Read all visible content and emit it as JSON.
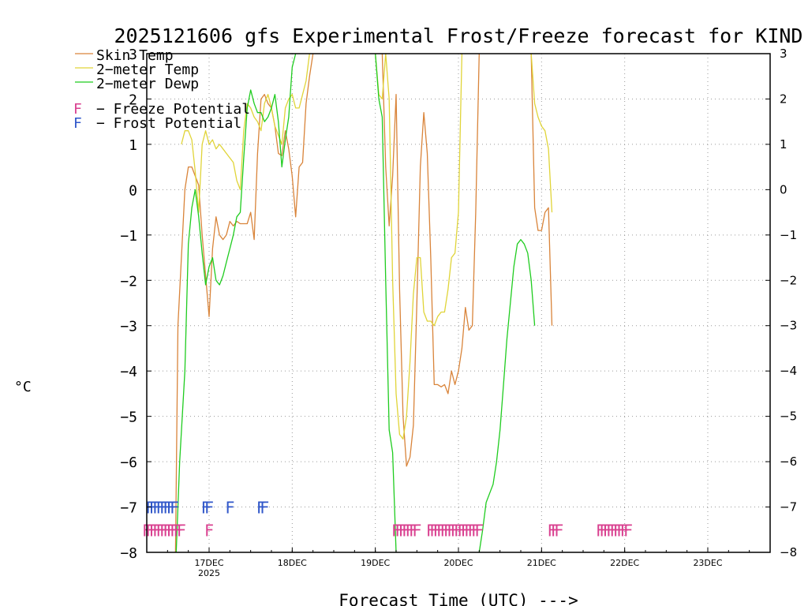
{
  "chart_data": {
    "type": "line",
    "title": "2025121606 gfs Experimental Frost/Freeze forecast for KIND",
    "ylabel": "°C",
    "xlabel": "Forecast Time (UTC) --->",
    "ylim": [
      -8,
      3
    ],
    "xlim_hours": [
      0,
      180
    ],
    "yticks": [
      -8,
      -7,
      -6,
      -5,
      -4,
      -3,
      -2,
      -1,
      0,
      1,
      2,
      3
    ],
    "ytick_labels": [
      "−8",
      "−7",
      "−6",
      "−5",
      "−4",
      "−3",
      "−2",
      "−1",
      "0",
      "1",
      "2",
      "3"
    ],
    "xticks": [
      {
        "hour": 18,
        "label": "17DEC",
        "sublabel": "2025"
      },
      {
        "hour": 42,
        "label": "18DEC",
        "sublabel": ""
      },
      {
        "hour": 66,
        "label": "19DEC",
        "sublabel": ""
      },
      {
        "hour": 90,
        "label": "20DEC",
        "sublabel": ""
      },
      {
        "hour": 114,
        "label": "21DEC",
        "sublabel": ""
      },
      {
        "hour": 138,
        "label": "22DEC",
        "sublabel": ""
      },
      {
        "hour": 162,
        "label": "23DEC",
        "sublabel": ""
      }
    ],
    "grid": true,
    "legend_position": "top-left",
    "series": [
      {
        "name": "Skin Temp",
        "color": "#d9843a",
        "points": [
          [
            8.3,
            -8
          ],
          [
            9,
            -3
          ],
          [
            11,
            0
          ],
          [
            12,
            0.5
          ],
          [
            13,
            0.5
          ],
          [
            15,
            0.1
          ],
          [
            16,
            -1
          ],
          [
            18,
            -2.8
          ],
          [
            19,
            -1.3
          ],
          [
            20,
            -0.6
          ],
          [
            21,
            -1
          ],
          [
            22,
            -1.1
          ],
          [
            23,
            -1.0
          ],
          [
            24,
            -0.7
          ],
          [
            25,
            -0.8
          ],
          [
            26,
            -0.7
          ],
          [
            27,
            -0.75
          ],
          [
            29,
            -0.75
          ],
          [
            30,
            -0.5
          ],
          [
            31,
            -1.1
          ],
          [
            32,
            0.8
          ],
          [
            33,
            2.0
          ],
          [
            34,
            2.1
          ],
          [
            35,
            1.9
          ],
          [
            36,
            1.8
          ],
          [
            37,
            1.4
          ],
          [
            38,
            0.8
          ],
          [
            39,
            0.75
          ],
          [
            40,
            1.3
          ],
          [
            41,
            0.9
          ],
          [
            42,
            0.3
          ],
          [
            43,
            -0.6
          ],
          [
            44,
            0.5
          ],
          [
            45,
            0.6
          ],
          [
            46,
            1.9
          ],
          [
            47,
            2.5
          ],
          [
            48,
            3
          ]
        ],
        "points2": [
          [
            68,
            3
          ],
          [
            69,
            0.5
          ],
          [
            70,
            -0.8
          ],
          [
            71,
            0.3
          ],
          [
            72,
            2.1
          ],
          [
            73,
            -2.2
          ],
          [
            74,
            -5.0
          ],
          [
            75,
            -6.1
          ],
          [
            76,
            -5.9
          ],
          [
            77,
            -5.2
          ],
          [
            78,
            -2.5
          ],
          [
            79,
            0.5
          ],
          [
            80,
            1.7
          ],
          [
            81,
            0.8
          ],
          [
            82,
            -1.5
          ],
          [
            83,
            -4.3
          ],
          [
            84,
            -4.3
          ],
          [
            85,
            -4.35
          ],
          [
            86,
            -4.3
          ],
          [
            87,
            -4.5
          ],
          [
            88,
            -4.0
          ],
          [
            89,
            -4.3
          ],
          [
            90,
            -4.0
          ],
          [
            91,
            -3.5
          ],
          [
            92,
            -2.6
          ],
          [
            93,
            -3.1
          ],
          [
            94,
            -3.0
          ],
          [
            95,
            -0.5
          ],
          [
            96,
            3
          ]
        ],
        "points3": [
          [
            111,
            3
          ],
          [
            112,
            -0.4
          ],
          [
            113,
            -0.9
          ],
          [
            114,
            -0.9
          ],
          [
            115,
            -0.5
          ],
          [
            116,
            -0.4
          ],
          [
            117,
            -3.0
          ]
        ]
      },
      {
        "name": "2-meter Temp",
        "color": "#e0d438",
        "points": [
          [
            10,
            1.0
          ],
          [
            11,
            1.3
          ],
          [
            12,
            1.3
          ],
          [
            13,
            1.1
          ],
          [
            14,
            0.4
          ],
          [
            15,
            -0.5
          ],
          [
            16,
            1.0
          ],
          [
            17,
            1.3
          ],
          [
            18,
            1.0
          ],
          [
            19,
            1.1
          ],
          [
            20,
            0.9
          ],
          [
            21,
            1.0
          ],
          [
            22,
            0.9
          ],
          [
            23,
            0.8
          ],
          [
            24,
            0.7
          ],
          [
            25,
            0.6
          ],
          [
            26,
            0.2
          ],
          [
            27,
            0.0
          ],
          [
            28,
            1.3
          ],
          [
            29,
            1.9
          ],
          [
            30,
            1.8
          ],
          [
            31,
            1.6
          ],
          [
            32,
            1.5
          ],
          [
            33,
            1.3
          ],
          [
            34,
            1.9
          ],
          [
            35,
            2.1
          ],
          [
            36,
            1.8
          ],
          [
            37,
            1.4
          ],
          [
            38,
            1.2
          ],
          [
            39,
            1.0
          ],
          [
            40,
            1.8
          ],
          [
            41,
            2.0
          ],
          [
            42,
            2.1
          ],
          [
            43,
            1.8
          ],
          [
            44,
            1.8
          ],
          [
            45,
            2.1
          ],
          [
            46,
            2.4
          ],
          [
            47,
            3
          ]
        ],
        "points2": [
          [
            66,
            3
          ],
          [
            67,
            2.1
          ],
          [
            68,
            2.0
          ],
          [
            69,
            3.0
          ],
          [
            70,
            2.0
          ],
          [
            71,
            -2.0
          ],
          [
            72,
            -4.5
          ],
          [
            73,
            -5.4
          ],
          [
            74,
            -5.5
          ],
          [
            75,
            -5.0
          ],
          [
            76,
            -3.8
          ],
          [
            77,
            -2.3
          ],
          [
            78,
            -1.5
          ],
          [
            79,
            -1.5
          ],
          [
            80,
            -2.7
          ],
          [
            81,
            -2.9
          ],
          [
            82,
            -2.9
          ],
          [
            83,
            -3.0
          ],
          [
            84,
            -2.8
          ],
          [
            85,
            -2.7
          ],
          [
            86,
            -2.7
          ],
          [
            87,
            -2.2
          ],
          [
            88,
            -1.5
          ],
          [
            89,
            -1.4
          ],
          [
            90,
            -0.5
          ],
          [
            91,
            3
          ]
        ],
        "points3": [
          [
            111,
            3
          ],
          [
            112,
            1.9
          ],
          [
            113,
            1.6
          ],
          [
            114,
            1.4
          ],
          [
            115,
            1.3
          ],
          [
            116,
            0.9
          ],
          [
            117,
            -0.5
          ]
        ]
      },
      {
        "name": "2-meter Dewp",
        "color": "#1fcc1f",
        "points": [
          [
            8.5,
            -8
          ],
          [
            9.5,
            -6
          ],
          [
            11,
            -4
          ],
          [
            12,
            -1.2
          ],
          [
            13,
            -0.4
          ],
          [
            14,
            0.0
          ],
          [
            15,
            -0.6
          ],
          [
            16,
            -1.4
          ],
          [
            17,
            -2.1
          ],
          [
            18,
            -1.7
          ],
          [
            19,
            -1.5
          ],
          [
            20,
            -2.0
          ],
          [
            21,
            -2.1
          ],
          [
            22,
            -1.9
          ],
          [
            23,
            -1.6
          ],
          [
            24,
            -1.3
          ],
          [
            25,
            -1.0
          ],
          [
            26,
            -0.6
          ],
          [
            27,
            -0.5
          ],
          [
            28,
            0.7
          ],
          [
            29,
            1.8
          ],
          [
            30,
            2.2
          ],
          [
            31,
            1.9
          ],
          [
            32,
            1.7
          ],
          [
            33,
            1.7
          ],
          [
            34,
            1.5
          ],
          [
            35,
            1.6
          ],
          [
            36,
            1.8
          ],
          [
            37,
            2.1
          ],
          [
            38,
            1.5
          ],
          [
            39,
            0.5
          ],
          [
            40,
            1.1
          ],
          [
            41,
            1.6
          ],
          [
            42,
            2.7
          ],
          [
            43,
            3
          ]
        ],
        "points2": [
          [
            66,
            3
          ],
          [
            67,
            2.0
          ],
          [
            68,
            1.6
          ],
          [
            69,
            -2.0
          ],
          [
            70,
            -5.3
          ],
          [
            71,
            -5.8
          ],
          [
            72,
            -8
          ]
        ],
        "points3": [
          [
            96,
            -8
          ],
          [
            97,
            -7.5
          ],
          [
            98,
            -6.9
          ],
          [
            99,
            -6.7
          ],
          [
            100,
            -6.5
          ],
          [
            101,
            -6.0
          ],
          [
            102,
            -5.3
          ],
          [
            103,
            -4.3
          ],
          [
            104,
            -3.3
          ],
          [
            105,
            -2.5
          ],
          [
            106,
            -1.7
          ],
          [
            107,
            -1.2
          ],
          [
            108,
            -1.1
          ],
          [
            109,
            -1.2
          ],
          [
            110,
            -1.4
          ],
          [
            111,
            -2.0
          ],
          [
            112,
            -3.0
          ]
        ]
      }
    ],
    "frost_markers": {
      "name": "Frost Potential",
      "glyph": "F",
      "color": "#2f56c9",
      "value": -7.0,
      "hours": [
        1,
        2,
        3,
        4,
        5,
        6,
        7,
        8,
        17,
        18,
        24,
        33,
        34
      ]
    },
    "freeze_markers": {
      "name": "Freeze Potential",
      "glyph": "F",
      "color": "#d93f8f",
      "value": -7.5,
      "hours": [
        0,
        1,
        2,
        3,
        4,
        5,
        6,
        7,
        8,
        9,
        10,
        18,
        72,
        73,
        74,
        75,
        76,
        77,
        78,
        82,
        83,
        84,
        85,
        86,
        87,
        88,
        89,
        90,
        91,
        92,
        93,
        94,
        95,
        96,
        117,
        118,
        119,
        131,
        132,
        133,
        134,
        135,
        136,
        137,
        138,
        139
      ]
    },
    "legend": [
      {
        "label": "Skin Temp",
        "color": "#d9843a",
        "type": "line"
      },
      {
        "label": "2−meter Temp",
        "color": "#e0d438",
        "type": "line"
      },
      {
        "label": "2−meter Dewp",
        "color": "#1fcc1f",
        "type": "line"
      },
      {
        "label": "− Freeze Potential",
        "glyph": "F",
        "color": "#d93f8f",
        "type": "glyph"
      },
      {
        "label": "− Frost Potential",
        "glyph": "F",
        "color": "#2f56c9",
        "type": "glyph"
      }
    ]
  }
}
